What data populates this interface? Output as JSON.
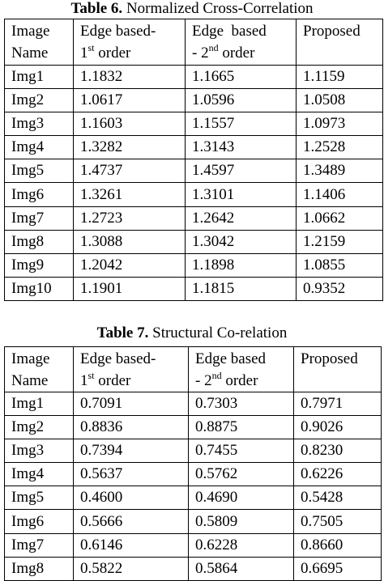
{
  "tables": [
    {
      "title": {
        "label": "Table 6.",
        "text": " Normalized Cross-Correlation"
      },
      "header": [
        [
          {
            "text": "Image"
          },
          {
            "text": "Name"
          }
        ],
        [
          {
            "text": "Edge based-"
          },
          {
            "text": "1",
            "sup": "st",
            "tail": " order"
          }
        ],
        [
          {
            "text": "Edge  based"
          },
          {
            "text": "- 2",
            "sup": "nd",
            "tail": " order"
          }
        ],
        [
          {
            "text": "Proposed"
          }
        ]
      ],
      "rows": [
        [
          "Img1",
          "1.1832",
          "1.1665",
          "1.1159"
        ],
        [
          "Img2",
          "1.0617",
          "1.0596",
          "1.0508"
        ],
        [
          "Img3",
          "1.1603",
          "1.1557",
          "1.0973"
        ],
        [
          "Img4",
          "1.3282",
          "1.3143",
          "1.2528"
        ],
        [
          "Img5",
          "1.4737",
          "1.4597",
          "1.3489"
        ],
        [
          "Img6",
          "1.3261",
          "1.3101",
          "1.1406"
        ],
        [
          "Img7",
          "1.2723",
          "1.2642",
          "1.0662"
        ],
        [
          "Img8",
          "1.3088",
          "1.3042",
          "1.2159"
        ],
        [
          "Img9",
          "1.2042",
          "1.1898",
          "1.0855"
        ],
        [
          "Img10",
          "1.1901",
          "1.1815",
          "0.9352"
        ]
      ]
    },
    {
      "title": {
        "label": "Table 7.",
        "text": " Structural Co-relation"
      },
      "header": [
        [
          {
            "text": "Image"
          },
          {
            "text": "Name"
          }
        ],
        [
          {
            "text": "Edge based-"
          },
          {
            "text": "1",
            "sup": "st",
            "tail": " order"
          }
        ],
        [
          {
            "text": "Edge based"
          },
          {
            "text": "- 2",
            "sup": "nd",
            "tail": " order"
          }
        ],
        [
          {
            "text": "Proposed"
          }
        ]
      ],
      "rows": [
        [
          "Img1",
          "0.7091",
          "0.7303",
          "0.7971"
        ],
        [
          "Img2",
          "0.8836",
          "0.8875",
          "0.9026"
        ],
        [
          "Img3",
          "0.7394",
          "0.7455",
          "0.8230"
        ],
        [
          "Img4",
          "0.5637",
          "0.5762",
          "0.6226"
        ],
        [
          "Img5",
          "0.4600",
          "0.4690",
          "0.5428"
        ],
        [
          "Img6",
          "0.5666",
          "0.5809",
          "0.7505"
        ],
        [
          "Img7",
          "0.6146",
          "0.6228",
          "0.8660"
        ],
        [
          "Img8",
          "0.5822",
          "0.5864",
          "0.6695"
        ]
      ]
    }
  ]
}
